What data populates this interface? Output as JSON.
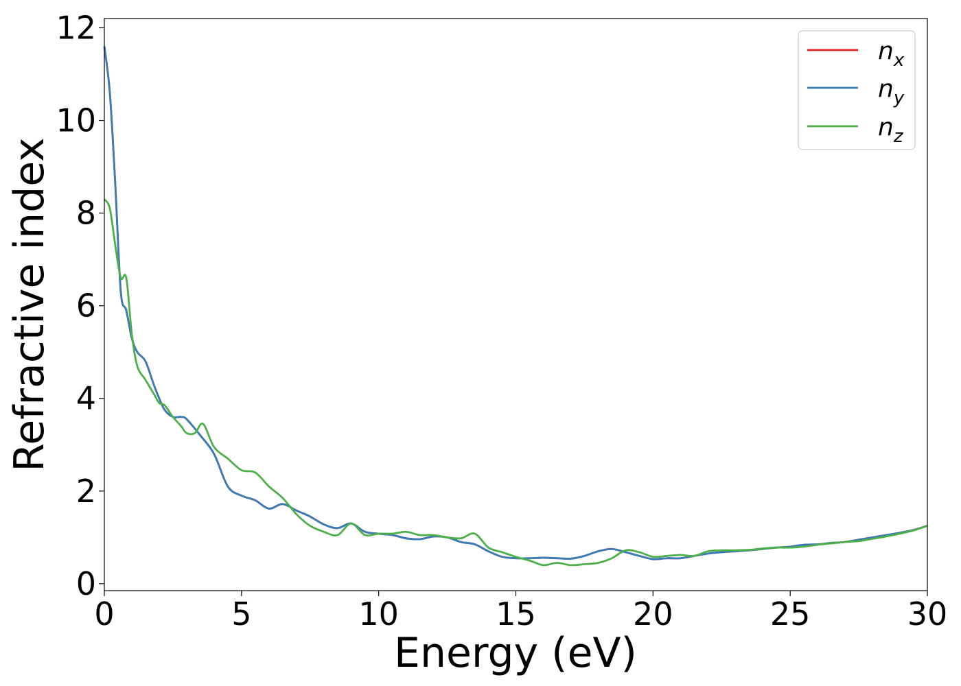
{
  "chart_data": {
    "type": "line",
    "xlabel": "Energy (eV)",
    "ylabel": "Refractive index",
    "xlim": [
      0,
      30
    ],
    "ylim": [
      -0.15,
      12.2
    ],
    "x_ticks": [
      0,
      5,
      10,
      15,
      20,
      25,
      30
    ],
    "y_ticks": [
      0,
      2,
      4,
      6,
      8,
      10,
      12
    ],
    "x_tick_labels": [
      "0",
      "5",
      "10",
      "15",
      "20",
      "25",
      "30"
    ],
    "y_tick_labels": [
      "0",
      "2",
      "4",
      "6",
      "8",
      "10",
      "12"
    ],
    "grid": false,
    "legend_position": "top-right",
    "legend": [
      {
        "base": "n",
        "sub": "x",
        "color": "#e41a1c"
      },
      {
        "base": "n",
        "sub": "y",
        "color": "#377eb8"
      },
      {
        "base": "n",
        "sub": "z",
        "color": "#4daf4a"
      }
    ],
    "series": [
      {
        "name": "n_x",
        "color": "#e41a1c",
        "x": [
          0,
          0.2,
          0.4,
          0.6,
          0.8,
          1.0,
          1.2,
          1.5,
          1.8,
          2.0,
          2.2,
          2.5,
          2.8,
          3.0,
          3.5,
          4.0,
          4.5,
          5.0,
          5.5,
          6.0,
          6.5,
          7.0,
          7.5,
          8.0,
          8.5,
          9.0,
          9.5,
          10,
          10.5,
          11,
          11.5,
          12,
          12.5,
          13,
          13.5,
          14,
          14.5,
          15,
          15.5,
          16,
          16.5,
          17,
          17.5,
          18,
          18.5,
          19,
          19.5,
          20,
          20.5,
          21,
          21.5,
          22,
          22.5,
          23,
          23.5,
          24,
          24.5,
          25,
          25.5,
          26,
          26.5,
          27,
          27.5,
          28,
          28.5,
          29,
          29.5,
          30
        ],
        "y": [
          11.6,
          10.6,
          8.6,
          6.3,
          5.9,
          5.3,
          5.0,
          4.8,
          4.3,
          4.0,
          3.75,
          3.6,
          3.6,
          3.55,
          3.2,
          2.8,
          2.1,
          1.9,
          1.8,
          1.62,
          1.72,
          1.58,
          1.45,
          1.28,
          1.2,
          1.3,
          1.12,
          1.08,
          1.05,
          0.98,
          0.96,
          1.02,
          1.0,
          0.9,
          0.85,
          0.7,
          0.58,
          0.55,
          0.55,
          0.56,
          0.55,
          0.54,
          0.6,
          0.7,
          0.75,
          0.68,
          0.6,
          0.53,
          0.55,
          0.55,
          0.6,
          0.65,
          0.68,
          0.7,
          0.72,
          0.75,
          0.78,
          0.8,
          0.84,
          0.85,
          0.88,
          0.9,
          0.95,
          1.0,
          1.05,
          1.1,
          1.16,
          1.25
        ]
      },
      {
        "name": "n_y",
        "color": "#377eb8",
        "x": [
          0,
          0.2,
          0.4,
          0.6,
          0.8,
          1.0,
          1.2,
          1.5,
          1.8,
          2.0,
          2.2,
          2.5,
          2.8,
          3.0,
          3.5,
          4.0,
          4.5,
          5.0,
          5.5,
          6.0,
          6.5,
          7.0,
          7.5,
          8.0,
          8.5,
          9.0,
          9.5,
          10,
          10.5,
          11,
          11.5,
          12,
          12.5,
          13,
          13.5,
          14,
          14.5,
          15,
          15.5,
          16,
          16.5,
          17,
          17.5,
          18,
          18.5,
          19,
          19.5,
          20,
          20.5,
          21,
          21.5,
          22,
          22.5,
          23,
          23.5,
          24,
          24.5,
          25,
          25.5,
          26,
          26.5,
          27,
          27.5,
          28,
          28.5,
          29,
          29.5,
          30
        ],
        "y": [
          11.6,
          10.6,
          8.6,
          6.3,
          5.9,
          5.3,
          5.0,
          4.8,
          4.3,
          4.0,
          3.75,
          3.6,
          3.6,
          3.55,
          3.2,
          2.8,
          2.1,
          1.9,
          1.8,
          1.62,
          1.72,
          1.58,
          1.45,
          1.28,
          1.2,
          1.3,
          1.12,
          1.08,
          1.05,
          0.98,
          0.96,
          1.02,
          1.0,
          0.9,
          0.85,
          0.7,
          0.58,
          0.55,
          0.55,
          0.56,
          0.55,
          0.54,
          0.6,
          0.7,
          0.75,
          0.68,
          0.6,
          0.53,
          0.55,
          0.55,
          0.6,
          0.65,
          0.68,
          0.7,
          0.72,
          0.75,
          0.78,
          0.8,
          0.84,
          0.85,
          0.88,
          0.9,
          0.95,
          1.0,
          1.05,
          1.1,
          1.16,
          1.25
        ]
      },
      {
        "name": "n_z",
        "color": "#4daf4a",
        "x": [
          0,
          0.2,
          0.4,
          0.6,
          0.8,
          1.0,
          1.2,
          1.5,
          1.8,
          2.0,
          2.2,
          2.5,
          2.8,
          3.0,
          3.3,
          3.6,
          4.0,
          4.5,
          5.0,
          5.5,
          6.0,
          6.5,
          7.0,
          7.5,
          8.0,
          8.5,
          9.0,
          9.5,
          10,
          10.5,
          11,
          11.5,
          12,
          12.5,
          13,
          13.5,
          14,
          14.5,
          15,
          15.5,
          16,
          16.5,
          17,
          17.5,
          18,
          18.5,
          19,
          19.5,
          20,
          20.5,
          21,
          21.5,
          22,
          22.5,
          23,
          23.5,
          24,
          24.5,
          25,
          25.5,
          26,
          26.5,
          27,
          27.5,
          28,
          28.5,
          29,
          29.5,
          30
        ],
        "y": [
          8.3,
          8.1,
          7.3,
          6.6,
          6.6,
          5.4,
          4.7,
          4.4,
          4.1,
          3.9,
          3.85,
          3.6,
          3.4,
          3.25,
          3.25,
          3.45,
          2.95,
          2.7,
          2.45,
          2.4,
          2.1,
          1.85,
          1.5,
          1.25,
          1.12,
          1.05,
          1.3,
          1.05,
          1.08,
          1.08,
          1.12,
          1.05,
          1.05,
          1.0,
          0.98,
          1.08,
          0.78,
          0.68,
          0.58,
          0.5,
          0.4,
          0.45,
          0.4,
          0.42,
          0.45,
          0.55,
          0.72,
          0.68,
          0.58,
          0.6,
          0.62,
          0.6,
          0.7,
          0.72,
          0.72,
          0.73,
          0.76,
          0.78,
          0.78,
          0.8,
          0.84,
          0.87,
          0.9,
          0.92,
          0.97,
          1.02,
          1.08,
          1.15,
          1.25
        ]
      }
    ]
  }
}
